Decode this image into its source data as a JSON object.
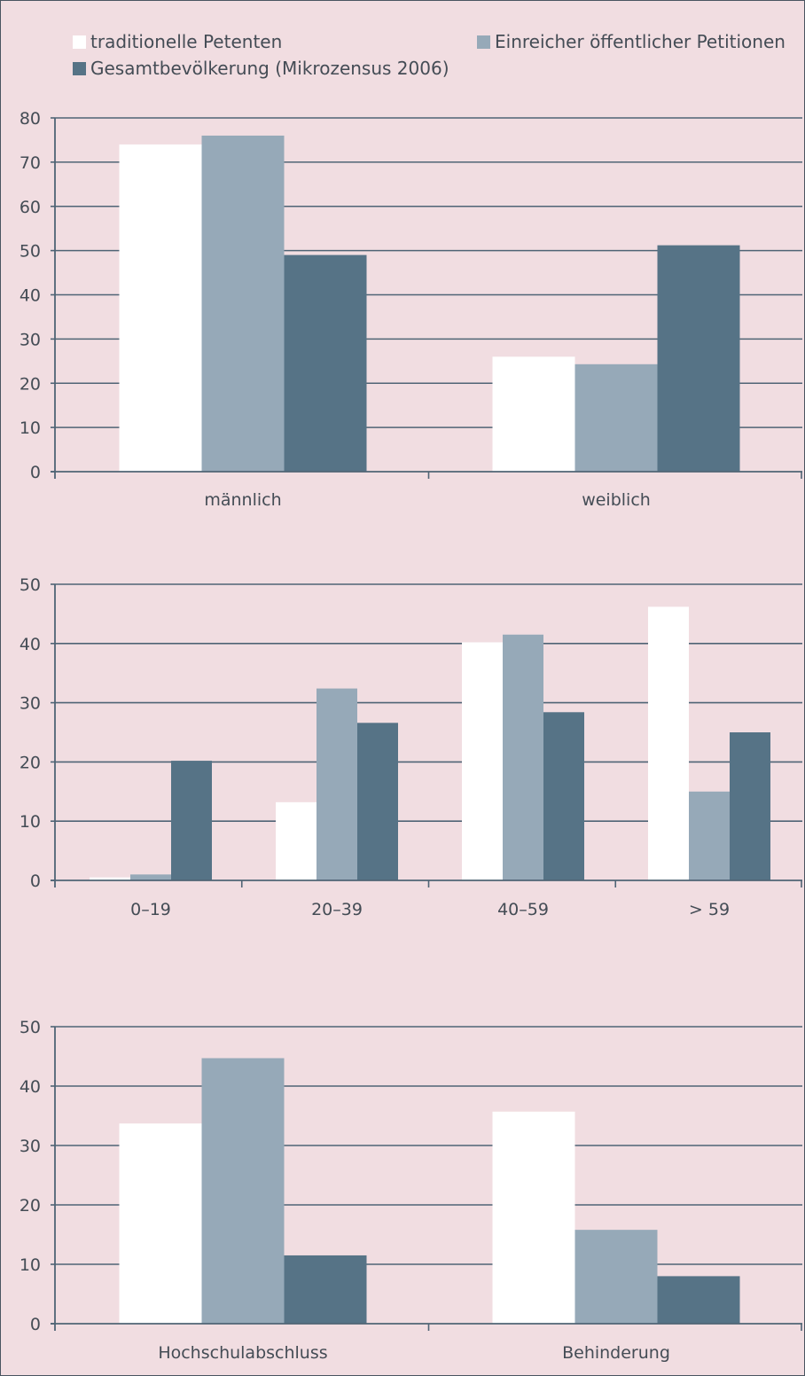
{
  "legend": [
    {
      "name": "traditionelle Petenten",
      "color": "#ffffff"
    },
    {
      "name": "Einreicher öffentlicher Petitionen",
      "color": "#96a9b8"
    },
    {
      "name": "Gesamtbevölkerung (Mikrozensus 2006)",
      "color": "#567386"
    }
  ],
  "chart_data": [
    {
      "type": "bar",
      "categories": [
        "männlich",
        "weiblich"
      ],
      "series": [
        {
          "name": "traditionelle Petenten",
          "values": [
            74,
            26
          ]
        },
        {
          "name": "Einreicher öffentlicher Petitionen",
          "values": [
            76,
            24.3
          ]
        },
        {
          "name": "Gesamtbevölkerung (Mikrozensus 2006)",
          "values": [
            49,
            51.2
          ]
        }
      ],
      "yticks": [
        0,
        10,
        20,
        30,
        40,
        50,
        60,
        70,
        80
      ],
      "ylim": [
        0,
        80
      ],
      "grid": true
    },
    {
      "type": "bar",
      "categories": [
        "0–19",
        "20–39",
        "40–59",
        "> 59"
      ],
      "series": [
        {
          "name": "traditionelle Petenten",
          "values": [
            0.5,
            13.2,
            40.2,
            46.2
          ]
        },
        {
          "name": "Einreicher öffentlicher Petitionen",
          "values": [
            1.0,
            32.4,
            41.5,
            15.0
          ]
        },
        {
          "name": "Gesamtbevölkerung (Mikrozensus 2006)",
          "values": [
            20.2,
            26.6,
            28.4,
            25.0
          ]
        }
      ],
      "yticks": [
        0,
        10,
        20,
        30,
        40,
        50
      ],
      "ylim": [
        0,
        50
      ],
      "grid": true
    },
    {
      "type": "bar",
      "categories": [
        "Hochschulabschluss",
        "Behinderung"
      ],
      "series": [
        {
          "name": "traditionelle Petenten",
          "values": [
            33.7,
            35.7
          ]
        },
        {
          "name": "Einreicher öffentlicher Petitionen",
          "values": [
            44.7,
            15.8
          ]
        },
        {
          "name": "Gesamtbevölkerung (Mikrozensus 2006)",
          "values": [
            11.5,
            8.0
          ]
        }
      ],
      "yticks": [
        0,
        10,
        20,
        30,
        40,
        50
      ],
      "ylim": [
        0,
        50
      ],
      "grid": true
    }
  ]
}
